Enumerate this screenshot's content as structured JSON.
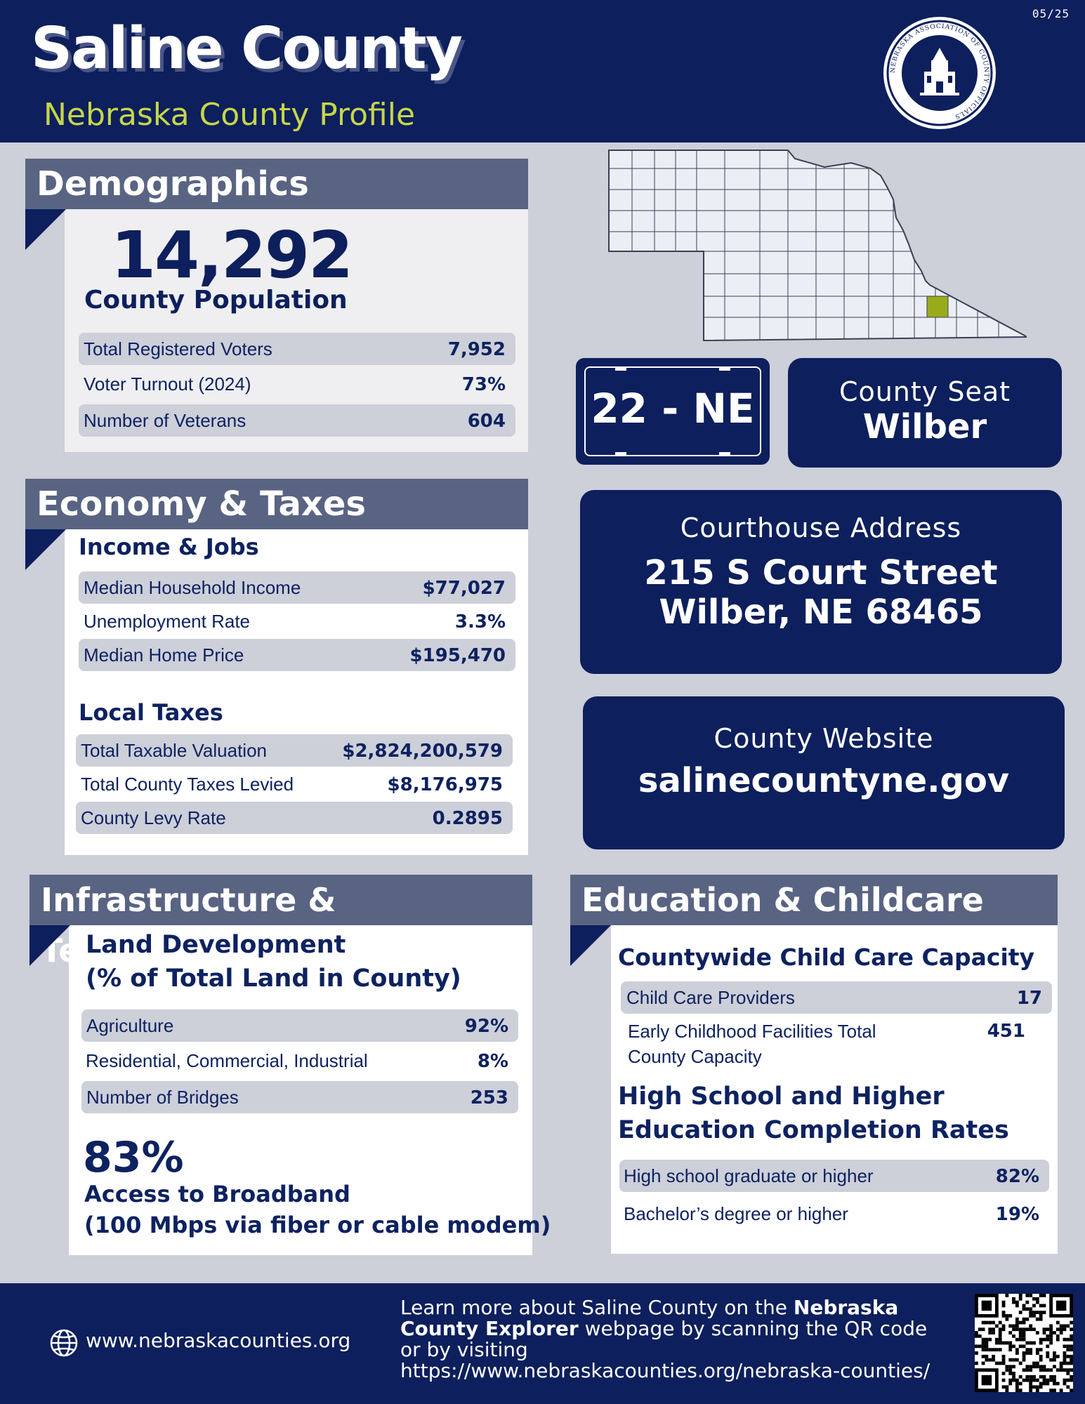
{
  "header": {
    "date": "05/25",
    "title": "Saline County",
    "subtitle": "Nebraska County Profile",
    "seal_text": "NEBRASKA ASSOCIATION OF COUNTY OFFICIALS"
  },
  "demographics": {
    "heading": "Demographics",
    "population": "14,292",
    "population_label": "County Population",
    "rows": [
      {
        "label": "Total Registered Voters",
        "value": "7,952"
      },
      {
        "label": "Voter Turnout (2024)",
        "value": "73%"
      },
      {
        "label": "Number of Veterans",
        "value": "604"
      }
    ]
  },
  "economy": {
    "heading": "Economy & Taxes",
    "income_heading": "Income & Jobs",
    "income_rows": [
      {
        "label": "Median Household Income",
        "value": "$77,027"
      },
      {
        "label": "Unemployment Rate",
        "value": "3.3%"
      },
      {
        "label": "Median Home Price",
        "value": "$195,470"
      }
    ],
    "taxes_heading": "Local Taxes",
    "tax_rows": [
      {
        "label": "Total Taxable Valuation",
        "value": "$2,824,200,579"
      },
      {
        "label": "Total County Taxes Levied",
        "value": "$8,176,975"
      },
      {
        "label": "County Levy Rate",
        "value": "0.2895"
      }
    ]
  },
  "infrastructure": {
    "heading": "Infrastructure & Technology",
    "land_heading_1": "Land Development",
    "land_heading_2": "(% of Total Land in County)",
    "rows": [
      {
        "label": "Agriculture",
        "value": "92%"
      },
      {
        "label": "Residential, Commercial, Industrial",
        "value": "8%"
      },
      {
        "label": "Number of Bridges",
        "value": "253"
      }
    ],
    "broadband_pct": "83%",
    "broadband_label_1": "Access to Broadband",
    "broadband_label_2": "(100 Mbps via fiber or cable modem)"
  },
  "plate": {
    "text": "22 - NE"
  },
  "seat": {
    "caption": "County Seat",
    "value": "Wilber"
  },
  "courthouse": {
    "caption": "Courthouse Address",
    "line1": "215 S Court Street",
    "line2": "Wilber, NE 68465"
  },
  "website": {
    "caption": "County Website",
    "value": "salinecountyne.gov"
  },
  "education": {
    "heading": "Education & Childcare",
    "childcare_heading": "Countywide Child Care Capacity",
    "childcare_rows": [
      {
        "label": "Child Care Providers",
        "value": "17"
      },
      {
        "label_1": "Early Childhood Facilities Total",
        "label_2": "County Capacity",
        "value": "451"
      }
    ],
    "completion_heading_1": "High School and Higher",
    "completion_heading_2": "Education Completion Rates",
    "completion_rows": [
      {
        "label": "High school graduate or higher",
        "value": "82%"
      },
      {
        "label": "Bachelor’s degree or higher",
        "value": "19%"
      }
    ]
  },
  "footer": {
    "site": "www.nebraskacounties.org",
    "text_1": "Learn more about Saline County on the ",
    "text_bold": "Nebraska County Explorer",
    "text_2": " webpage by scanning the QR code or by visiting https://www.nebraskacounties.org/nebraska-counties/"
  },
  "colors": {
    "navy": "#0d1f5c",
    "slate": "#596483",
    "accent_green": "#c6d64a",
    "county_highlight": "#9aab1a",
    "background": "#cdcfd9"
  }
}
